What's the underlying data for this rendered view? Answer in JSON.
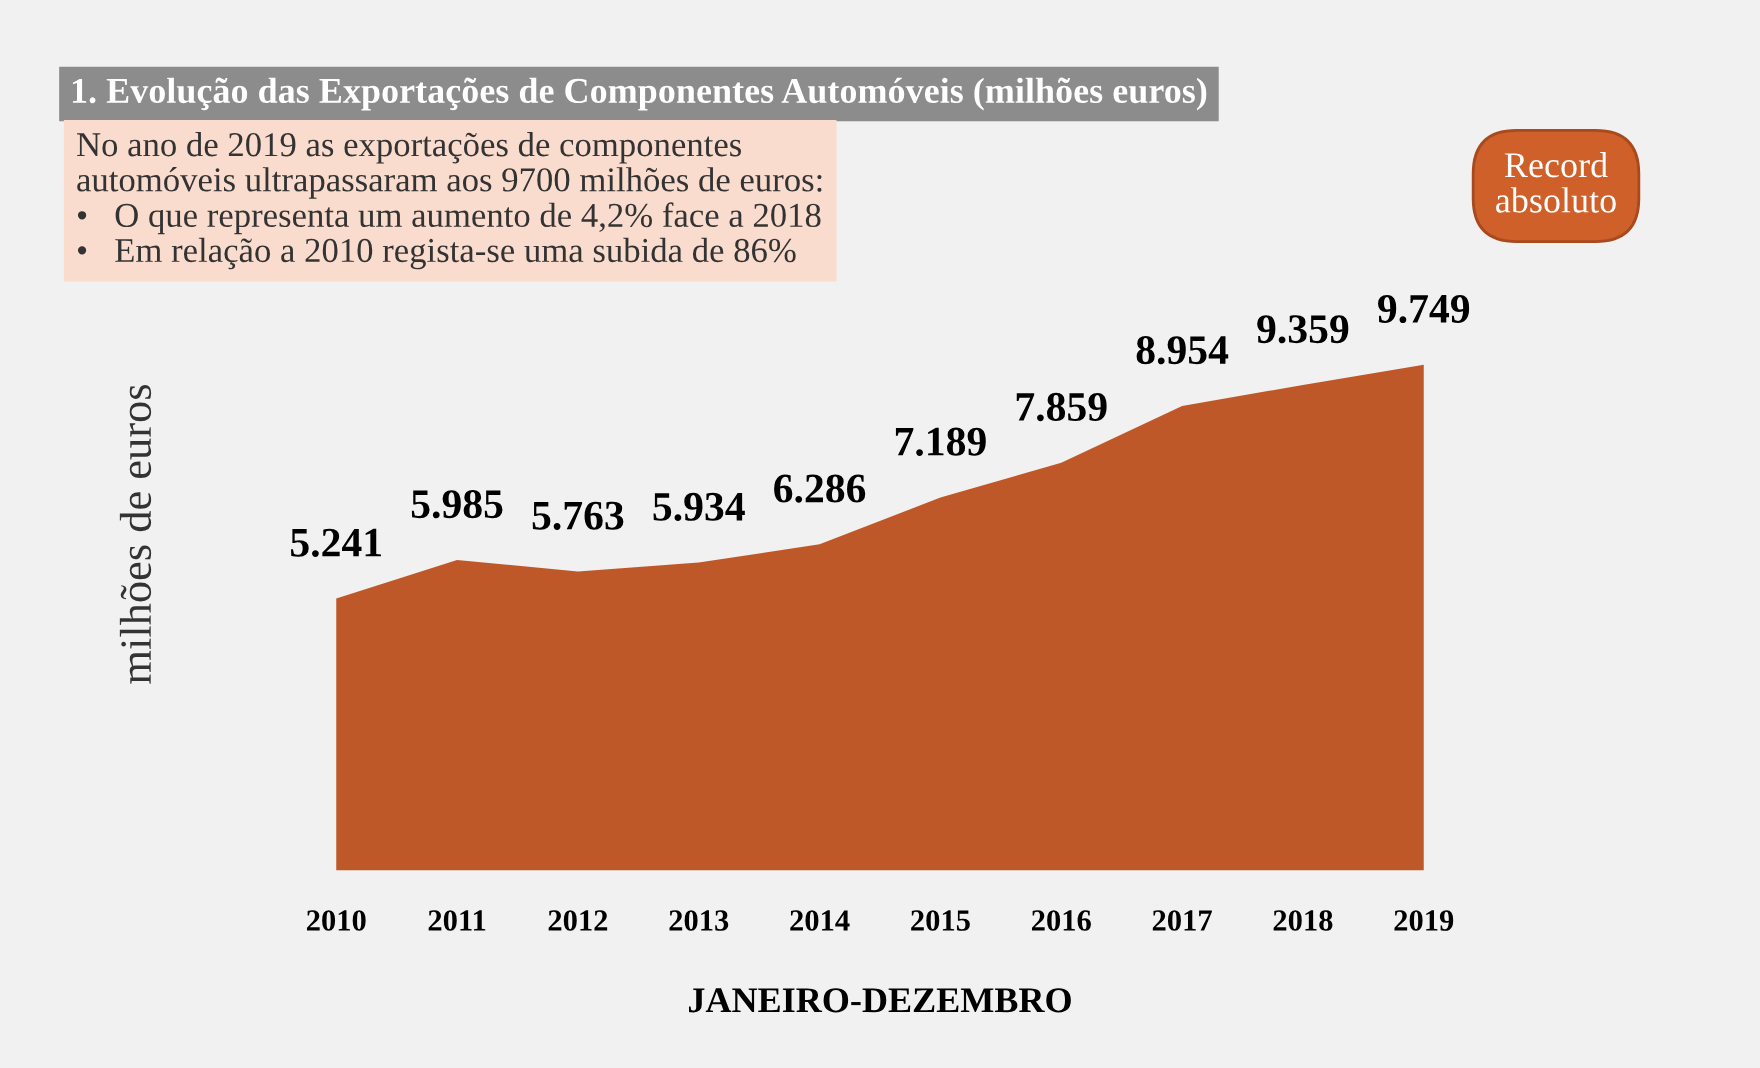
{
  "chart_data": {
    "type": "area",
    "title": "1. Evolução das Exportações de Componentes Automóveis (milhões euros)",
    "subtitle": "No ano de 2019 as exportações de componentes\nautomóveis ultrapassaram aos 9700 milhões de euros:\n•   O que representa um aumento de 4,2% face a 2018\n•   Em relação a 2010 regista-se uma subida de 86%",
    "xlabel": "JANEIRO-DEZEMBRO",
    "ylabel": "milhões de euros",
    "categories": [
      "2010",
      "2011",
      "2012",
      "2013",
      "2014",
      "2015",
      "2016",
      "2017",
      "2018",
      "2019"
    ],
    "values": [
      5241,
      5985,
      5763,
      5934,
      6286,
      7189,
      7859,
      8954,
      9359,
      9749
    ],
    "value_labels": [
      "5.241",
      "5.985",
      "5.763",
      "5.934",
      "6.286",
      "7.189",
      "7.859",
      "8.954",
      "9.359",
      "9.749"
    ],
    "color": "#bf5829",
    "annotations": [
      "Record absoluto"
    ]
  }
}
